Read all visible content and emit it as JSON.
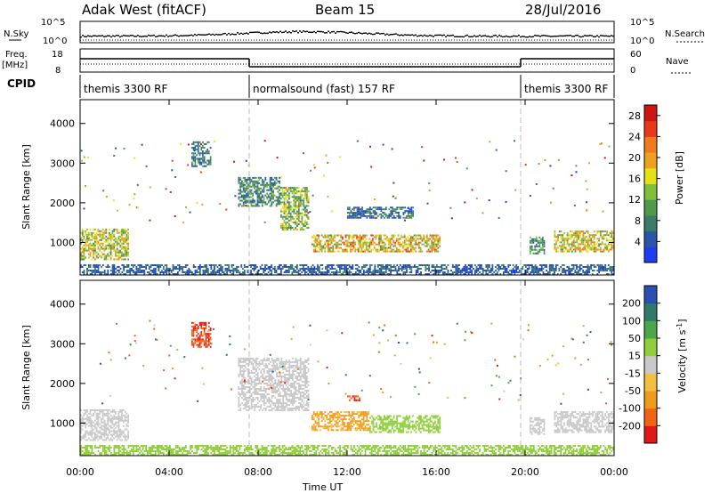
{
  "header": {
    "radar": "Adak West (fitACF)",
    "beam": "Beam 15",
    "date": "28/Jul/2016"
  },
  "strip_labels": {
    "nsky": "N.Sky",
    "nsearch": "N.Search",
    "freq": "Freq.",
    "freq_unit": "[MHz]",
    "nave": "Nave",
    "cpid": "CPID"
  },
  "strip_ticks": {
    "noise_left": [
      "10^5",
      "10^0"
    ],
    "noise_right": [
      "10^5",
      "10^0"
    ],
    "freq_left": [
      "18",
      "8"
    ],
    "nave_right": [
      "60",
      "0"
    ]
  },
  "cpid_segments": [
    {
      "label": "themis 3300 RF",
      "start": 0,
      "end": 7.6
    },
    {
      "label": "normalsound (fast) 157 RF",
      "start": 7.6,
      "end": 19.8
    },
    {
      "label": "themis 3300 RF",
      "start": 19.8,
      "end": 24
    }
  ],
  "colors": {
    "power": [
      "#1e3cf0",
      "#2a55a8",
      "#3b7b6a",
      "#4f9a4a",
      "#7fbf3c",
      "#e6e016",
      "#f0a020",
      "#f07a1c",
      "#e8391a",
      "#d01414"
    ],
    "velocity": [
      "#e01818",
      "#f06414",
      "#f09a1c",
      "#f0c040",
      "#c8c8c8",
      "#8fcf3c",
      "#4aa84a",
      "#2f7a6a",
      "#2a4fb0"
    ]
  },
  "chart_data": [
    {
      "type": "heatmap",
      "name": "power",
      "ylabel": "Slant Range [km]",
      "xlabel": "Time UT",
      "xlim": [
        0,
        24
      ],
      "ylim": [
        180,
        4600
      ],
      "x_ticks": [
        "00:00",
        "04:00",
        "08:00",
        "12:00",
        "16:00",
        "20:00",
        "00:00"
      ],
      "y_ticks": [
        "1000",
        "2000",
        "3000",
        "4000"
      ],
      "colorbar_label": "Power [dB]",
      "colorbar_ticks": [
        "4",
        "8",
        "12",
        "16",
        "20",
        "24",
        "28"
      ],
      "colorbar_range": [
        0,
        30
      ],
      "regions": [
        {
          "t0": 0.0,
          "t1": 2.2,
          "r0": 550,
          "r1": 1350,
          "val": 15
        },
        {
          "t0": 5.0,
          "t1": 5.9,
          "r0": 2900,
          "r1": 3550,
          "val": 7
        },
        {
          "t0": 7.1,
          "t1": 9.0,
          "r0": 1900,
          "r1": 2650,
          "val": 8
        },
        {
          "t0": 9.0,
          "t1": 10.3,
          "r0": 1300,
          "r1": 2400,
          "val": 13
        },
        {
          "t0": 10.4,
          "t1": 16.2,
          "r0": 750,
          "r1": 1200,
          "val": 18
        },
        {
          "t0": 12.0,
          "t1": 15.0,
          "r0": 1600,
          "r1": 1900,
          "val": 6
        },
        {
          "t0": 20.2,
          "t1": 20.9,
          "r0": 700,
          "r1": 1150,
          "val": 9
        },
        {
          "t0": 21.3,
          "t1": 24.0,
          "r0": 750,
          "r1": 1300,
          "val": 16
        },
        {
          "t0": 0.0,
          "t1": 24.0,
          "r0": 180,
          "r1": 450,
          "val": 5
        }
      ]
    },
    {
      "type": "heatmap",
      "name": "velocity",
      "ylabel": "Slant Range [km]",
      "xlabel": "Time UT",
      "xlim": [
        0,
        24
      ],
      "ylim": [
        180,
        4600
      ],
      "x_ticks": [
        "00:00",
        "04:00",
        "08:00",
        "12:00",
        "16:00",
        "20:00",
        "00:00"
      ],
      "y_ticks": [
        "1000",
        "2000",
        "3000",
        "4000"
      ],
      "colorbar_label": "Velocity [m s^-1]",
      "colorbar_ticks": [
        "200",
        "100",
        "50",
        "15",
        "-15",
        "-50",
        "-100",
        "-200"
      ],
      "colorbar_range": [
        -250,
        250
      ],
      "regions": [
        {
          "t0": 0.0,
          "t1": 2.2,
          "r0": 550,
          "r1": 1350,
          "val": 0
        },
        {
          "t0": 5.0,
          "t1": 5.9,
          "r0": 2900,
          "r1": 3550,
          "val": -200
        },
        {
          "t0": 7.1,
          "t1": 10.3,
          "r0": 1300,
          "r1": 2650,
          "val": 5
        },
        {
          "t0": 10.4,
          "t1": 13.0,
          "r0": 800,
          "r1": 1300,
          "val": -60
        },
        {
          "t0": 13.0,
          "t1": 16.2,
          "r0": 750,
          "r1": 1200,
          "val": 25
        },
        {
          "t0": 12.0,
          "t1": 12.6,
          "r0": 1550,
          "r1": 1700,
          "val": -200
        },
        {
          "t0": 20.2,
          "t1": 20.9,
          "r0": 700,
          "r1": 1150,
          "val": 0
        },
        {
          "t0": 21.3,
          "t1": 24.0,
          "r0": 750,
          "r1": 1300,
          "val": 0
        },
        {
          "t0": 0.0,
          "t1": 24.0,
          "r0": 180,
          "r1": 450,
          "val": 30
        }
      ]
    }
  ]
}
